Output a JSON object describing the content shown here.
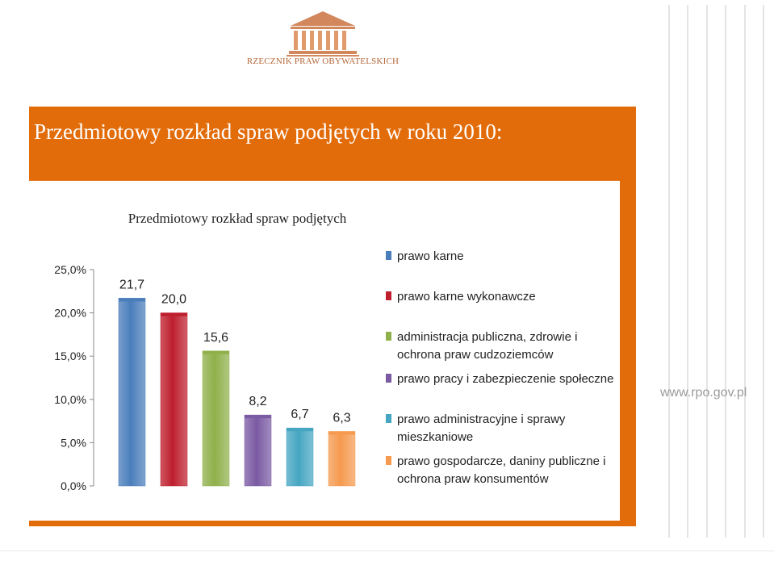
{
  "header": {
    "logo_text": "RZECZNIK PRAW OBYWATELSKICH"
  },
  "slide_title": "Przedmiotowy rozkład spraw podjętych w roku 2010:",
  "website": "www.rpo.gov.pl",
  "chart_data": {
    "type": "bar",
    "title": "Przedmiotowy rozkład spraw podjętych",
    "xlabel": "",
    "ylabel": "",
    "ylim": [
      0,
      25
    ],
    "yticks": [
      "25,0%",
      "20,0%",
      "15,0%",
      "10,0%",
      "5,0%",
      "0,0%"
    ],
    "grid": false,
    "legend_position": "right",
    "series": [
      {
        "name": "prawo karne",
        "value": 21.7,
        "label": "21,7",
        "color": "#4a7ebb"
      },
      {
        "name": "prawo karne wykonawcze",
        "value": 20.0,
        "label": "20,0",
        "color": "#be1e2d"
      },
      {
        "name": "administracja publiczna, zdrowie i ochrona praw cudzoziemców",
        "value": 15.6,
        "label": "15,6",
        "color": "#8fb04a"
      },
      {
        "name": "prawo pracy i zabezpieczenie społeczne",
        "value": 8.2,
        "label": "8,2",
        "color": "#7a5aa3"
      },
      {
        "name": "prawo administracyjne i sprawy mieszkaniowe",
        "value": 6.7,
        "label": "6,7",
        "color": "#46a6c2"
      },
      {
        "name": "prawo gospodarcze, daniny publiczne i ochrona praw konsumentów",
        "value": 6.3,
        "label": "6,3",
        "color": "#f59a4f"
      }
    ],
    "legend_lines": [
      [
        "prawo karne"
      ],
      [
        "prawo karne wykonawcze"
      ],
      [
        "administracja publiczna, zdrowie i",
        "ochrona praw cudzoziemców"
      ],
      [
        "prawo pracy i zabezpieczenie społeczne"
      ],
      [
        "prawo administracyjne i sprawy",
        "mieszkaniowe"
      ],
      [
        "prawo gospodarcze, daniny publiczne i",
        "ochrona praw konsumentów"
      ]
    ]
  }
}
